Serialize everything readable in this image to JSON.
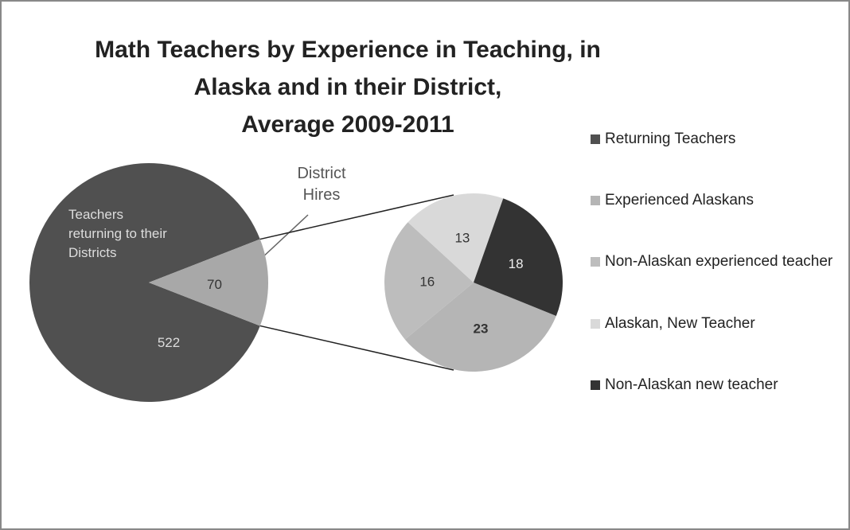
{
  "chart_data": {
    "type": "pie_of_pie",
    "title": [
      "Math Teachers by Experience in Teaching, in",
      "Alaska and in their District,",
      "Average 2009-2011"
    ],
    "pie": {
      "labels": [
        "Teachers returning to their Districts",
        "District Hires"
      ],
      "values": [
        522,
        70
      ],
      "colors": [
        "#505050",
        "#a8a8a8"
      ]
    },
    "secondary_pie": {
      "values": [
        23,
        16,
        13,
        18
      ],
      "colors": [
        "#b5b5b5",
        "#bdbdbd",
        "#d9d9d9",
        "#333333"
      ]
    },
    "legend": {
      "names": [
        "Returning Teachers",
        "Experienced Alaskans",
        "Non-Alaskan experienced teacher",
        "Alaskan, New Teacher",
        "Non-Alaskan new teacher"
      ],
      "colors": [
        "#505050",
        "#b5b5b5",
        "#bdbdbd",
        "#d9d9d9",
        "#333333"
      ]
    },
    "legend_position": "right"
  }
}
